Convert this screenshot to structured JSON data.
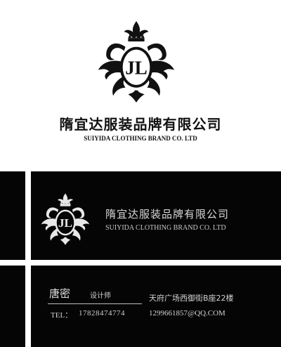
{
  "front": {
    "logo": {
      "monogram": "JL",
      "icon": "damask-crown-monogram-logo"
    },
    "company_cn": "隋宜达服装品牌有限公司",
    "company_en": "SUIYIDA CLOTHING BRAND CO. LTD"
  },
  "back": {
    "logo": {
      "monogram": "JL",
      "icon": "damask-crown-monogram-logo"
    },
    "company_cn": "隋宜达服装品牌有限公司",
    "company_en": "SUIYIDA CLOTHING BRAND CO. LTD",
    "name": "唐密",
    "role": "设计师",
    "tel_label": "TEL：",
    "tel": "17828474774",
    "address": "天府广场西御街B座22楼",
    "email": "1299661857@QQ.COM"
  },
  "colors": {
    "panel": "#050505",
    "ink": "#111111",
    "light_text": "#d8d8d8"
  }
}
